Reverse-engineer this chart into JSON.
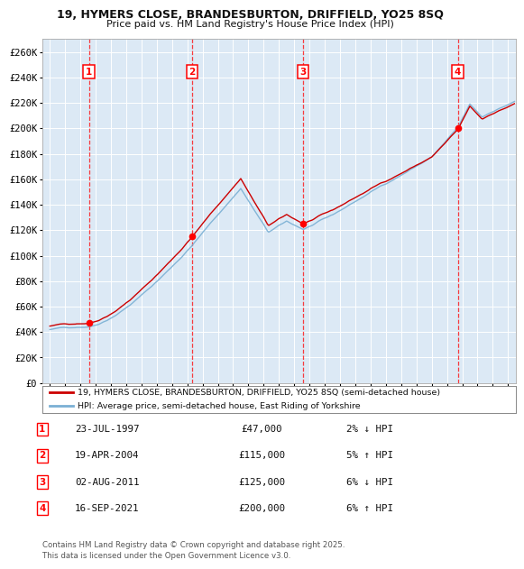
{
  "title_line1": "19, HYMERS CLOSE, BRANDESBURTON, DRIFFIELD, YO25 8SQ",
  "title_line2": "Price paid vs. HM Land Registry's House Price Index (HPI)",
  "background_color": "#dce9f5",
  "fig_bg_color": "#ffffff",
  "ylim": [
    0,
    270000
  ],
  "yticks": [
    0,
    20000,
    40000,
    60000,
    80000,
    100000,
    120000,
    140000,
    160000,
    180000,
    200000,
    220000,
    240000,
    260000
  ],
  "ytick_labels": [
    "£0",
    "£20K",
    "£40K",
    "£60K",
    "£80K",
    "£100K",
    "£120K",
    "£140K",
    "£160K",
    "£180K",
    "£200K",
    "£220K",
    "£240K",
    "£260K"
  ],
  "hpi_color": "#7ab0d4",
  "price_color": "#cc0000",
  "sale_points": [
    {
      "date_num": 1997.56,
      "price": 47000,
      "label": "1"
    },
    {
      "date_num": 2004.3,
      "price": 115000,
      "label": "2"
    },
    {
      "date_num": 2011.59,
      "price": 125000,
      "label": "3"
    },
    {
      "date_num": 2021.71,
      "price": 200000,
      "label": "4"
    }
  ],
  "sale_table": [
    {
      "num": "1",
      "date": "23-JUL-1997",
      "price": "£47,000",
      "hpi": "2% ↓ HPI"
    },
    {
      "num": "2",
      "date": "19-APR-2004",
      "price": "£115,000",
      "hpi": "5% ↑ HPI"
    },
    {
      "num": "3",
      "date": "02-AUG-2011",
      "price": "£125,000",
      "hpi": "6% ↓ HPI"
    },
    {
      "num": "4",
      "date": "16-SEP-2021",
      "price": "£200,000",
      "hpi": "6% ↑ HPI"
    }
  ],
  "legend_line1": "19, HYMERS CLOSE, BRANDESBURTON, DRIFFIELD, YO25 8SQ (semi-detached house)",
  "legend_line2": "HPI: Average price, semi-detached house, East Riding of Yorkshire",
  "footnote": "Contains HM Land Registry data © Crown copyright and database right 2025.\nThis data is licensed under the Open Government Licence v3.0.",
  "xlim_start": 1994.5,
  "xlim_end": 2025.5,
  "xticks": [
    1995,
    1996,
    1997,
    1998,
    1999,
    2000,
    2001,
    2002,
    2003,
    2004,
    2005,
    2006,
    2007,
    2008,
    2009,
    2010,
    2011,
    2012,
    2013,
    2014,
    2015,
    2016,
    2017,
    2018,
    2019,
    2020,
    2021,
    2022,
    2023,
    2024,
    2025
  ]
}
